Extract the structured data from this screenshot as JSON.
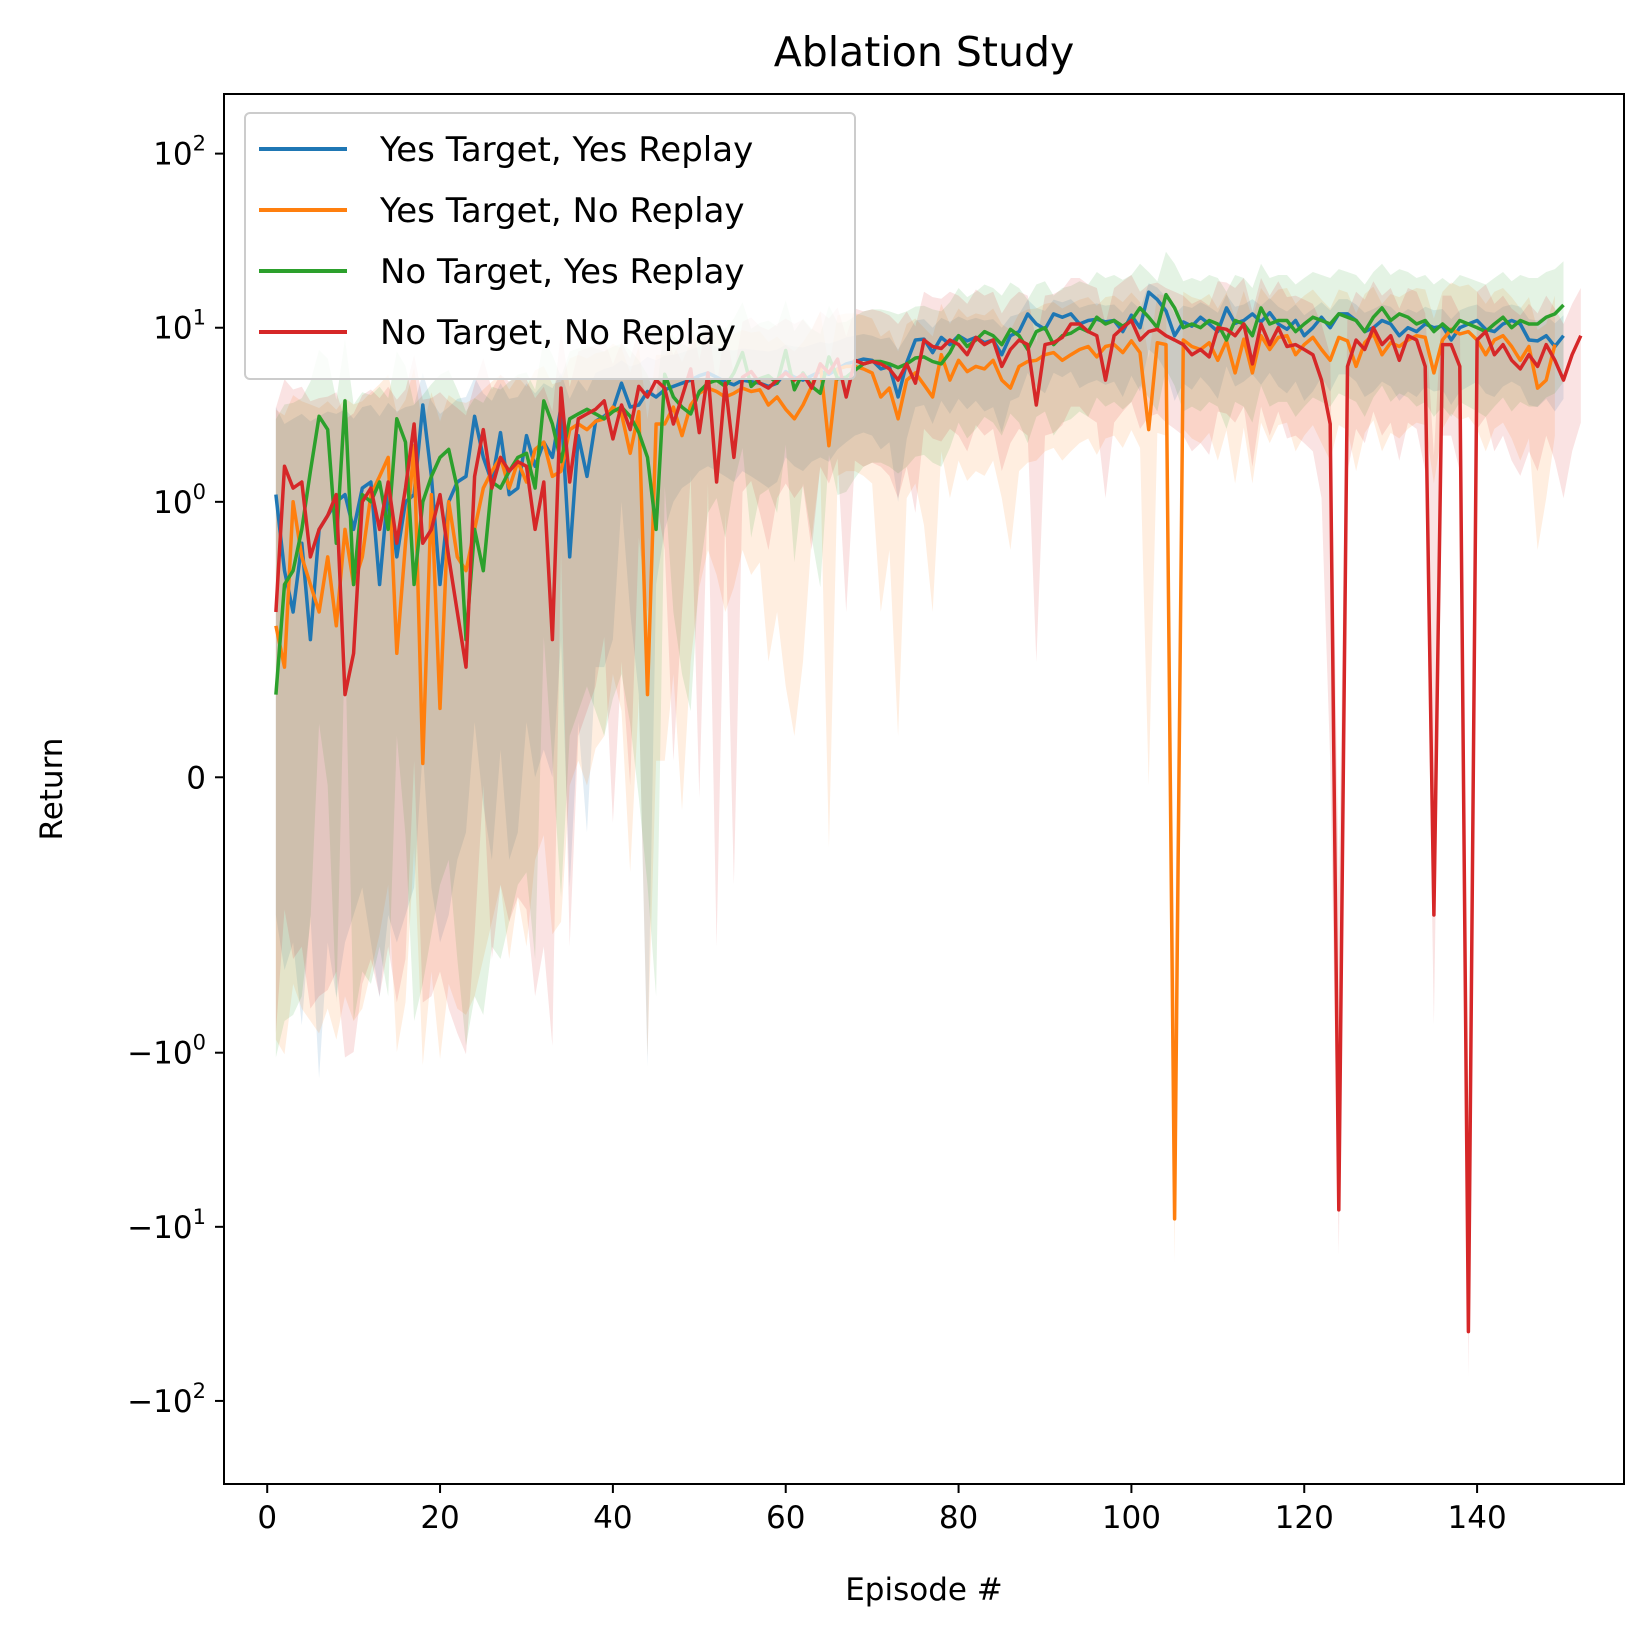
{
  "chart_data": {
    "type": "line",
    "title": "Ablation Study",
    "xlabel": "Episode #",
    "ylabel": "Return",
    "y_scale": "symlog",
    "xlim": [
      -5,
      157
    ],
    "ylim": [
      -300,
      220
    ],
    "x_ticks": [
      0,
      20,
      40,
      60,
      80,
      100,
      120,
      140
    ],
    "y_ticks": [
      {
        "value": 100,
        "base": "10",
        "exp": "2"
      },
      {
        "value": 10,
        "base": "10",
        "exp": "1"
      },
      {
        "value": 1,
        "base": "10",
        "exp": "0"
      },
      {
        "value": 0,
        "plain": "0"
      },
      {
        "value": -1,
        "base": "−10",
        "exp": "0"
      },
      {
        "value": -10,
        "base": "−10",
        "exp": "1"
      },
      {
        "value": -100,
        "base": "−10",
        "exp": "2"
      }
    ],
    "legend_position": "top-left",
    "grid": false,
    "episodes_first": 1,
    "series": [
      {
        "name": "Yes Target, Yes Replay",
        "color": "#1f77b4",
        "values": [
          1.1,
          0.75,
          0.6,
          0.85,
          0.5,
          0.9,
          0.95,
          1.0,
          1.1,
          0.9,
          1.2,
          1.3,
          0.7,
          1.2,
          0.8,
          1.0,
          1.1,
          3.6,
          1.4,
          0.7,
          1.0,
          1.3,
          1.4,
          3.1,
          1.8,
          1.3,
          2.5,
          1.1,
          1.2,
          2.4,
          1.6,
          2.2,
          1.8,
          3.5,
          0.8,
          2.4,
          1.4,
          2.9,
          3.1,
          3.4,
          4.8,
          3.5,
          3.6,
          4.3,
          4.0,
          4.4,
          4.6,
          4.8,
          5.0,
          5.3,
          5.5,
          5.2,
          4.9,
          4.7,
          5.0,
          4.9,
          4.8,
          4.6,
          4.8,
          5.6,
          5.2,
          5.0,
          5.3,
          5.6,
          5.4,
          5.8,
          6.2,
          6.4,
          6.6,
          6.5,
          5.8,
          6.0,
          4.0,
          6.3,
          8.5,
          8.6,
          7.2,
          8.8,
          8.0,
          9.0,
          8.4,
          8.8,
          8.2,
          8.5,
          7.0,
          9.0,
          9.5,
          12.0,
          10.5,
          9.8,
          12.0,
          11.5,
          12.0,
          10.5,
          11.0,
          11.2,
          10.8,
          11.0,
          9.5,
          11.8,
          10.0,
          16.0,
          14.5,
          12.5,
          9.0,
          10.8,
          10.2,
          11.5,
          10.5,
          9.5,
          13.0,
          10.6,
          11.0,
          12.0,
          10.8,
          12.2,
          10.5,
          9.8,
          11.0,
          9.0,
          10.0,
          11.5,
          10.0,
          12.0,
          12.0,
          11.0,
          9.5,
          10.0,
          11.0,
          10.5,
          9.0,
          10.0,
          9.5,
          10.5,
          10.0,
          10.2,
          8.5,
          10.0,
          10.5,
          11.0,
          9.8,
          9.5,
          10.5,
          11.0,
          10.5,
          8.5,
          8.4,
          9.0,
          7.8,
          9.0
        ],
        "upper": [
          3.5,
          2.8,
          3.0,
          3.2,
          2.9,
          3.1,
          3.3,
          3.2,
          3.4,
          3.0,
          3.5,
          3.6,
          3.1,
          3.7,
          3.3,
          3.5,
          3.6,
          5.5,
          3.8,
          3.2,
          3.5,
          3.9,
          4.0,
          5.2,
          4.2,
          3.8,
          4.8,
          3.9,
          4.0,
          4.8,
          4.2,
          4.8,
          4.5,
          5.5,
          3.9,
          5.0,
          4.3,
          5.5,
          5.8,
          6.0,
          6.5,
          6.0,
          6.2,
          6.8,
          6.5,
          6.9,
          7.0,
          7.2,
          7.5,
          7.8,
          8.0,
          7.8,
          7.5,
          7.4,
          7.6,
          7.5,
          7.4,
          7.3,
          7.5,
          8.0,
          7.8,
          7.7,
          8.0,
          8.3,
          8.1,
          8.4,
          8.8,
          9.0,
          9.2,
          9.0,
          8.6,
          8.8,
          7.5,
          9.0,
          11.0,
          11.2,
          10.0,
          11.4,
          10.8,
          11.6,
          11.0,
          11.4,
          11.0,
          11.2,
          10.0,
          11.6,
          12.0,
          14.5,
          13.0,
          12.5,
          14.5,
          14.0,
          14.6,
          13.0,
          13.5,
          13.8,
          13.4,
          13.6,
          12.2,
          14.2,
          12.8,
          18.0,
          17.0,
          15.0,
          12.0,
          13.4,
          13.0,
          14.0,
          13.2,
          12.2,
          15.5,
          13.2,
          13.6,
          14.6,
          13.4,
          14.8,
          13.2,
          12.4,
          13.6,
          11.8,
          12.8,
          14.0,
          12.6,
          14.6,
          14.6,
          13.6,
          12.2,
          12.8,
          13.6,
          13.2,
          11.8,
          12.8,
          12.2,
          13.2,
          12.6,
          12.8,
          11.2,
          12.6,
          13.2,
          13.6,
          12.4,
          12.2,
          13.2,
          13.6,
          13.2,
          11.2,
          11.0,
          11.8,
          10.6,
          11.8
        ],
        "lower": [
          -0.5,
          -0.7,
          -0.6,
          -0.9,
          -0.5,
          -1.4,
          -0.6,
          -0.8,
          -0.6,
          -0.5,
          -0.4,
          -0.6,
          -0.8,
          -0.5,
          -0.6,
          -0.5,
          -0.4,
          0.1,
          -0.4,
          -0.6,
          -0.5,
          -0.3,
          -0.2,
          0.2,
          -0.1,
          -0.3,
          0.1,
          -0.3,
          -0.2,
          0.2,
          0.0,
          0.1,
          0.0,
          0.5,
          -0.4,
          0.2,
          -0.2,
          0.4,
          0.4,
          0.5,
          1.0,
          0.6,
          0.3,
          -1.2,
          0.7,
          0.9,
          1.0,
          1.2,
          1.3,
          1.5,
          1.6,
          1.5,
          1.4,
          1.3,
          1.5,
          1.4,
          1.3,
          1.2,
          1.3,
          1.8,
          1.6,
          1.5,
          1.7,
          1.8,
          1.7,
          2.0,
          2.2,
          2.4,
          2.5,
          2.4,
          2.0,
          2.2,
          1.0,
          2.3,
          3.5,
          3.6,
          2.8,
          3.8,
          3.2,
          3.9,
          3.4,
          3.8,
          3.3,
          3.5,
          2.5,
          3.8,
          4.0,
          5.5,
          4.6,
          4.2,
          5.5,
          5.2,
          5.6,
          4.5,
          4.8,
          5.0,
          4.7,
          4.9,
          4.0,
          5.3,
          4.3,
          7.5,
          6.8,
          5.6,
          3.8,
          4.8,
          4.4,
          5.2,
          4.6,
          3.9,
          6.0,
          4.6,
          4.9,
          5.4,
          4.7,
          5.5,
          4.6,
          4.2,
          4.9,
          3.8,
          4.3,
          5.2,
          4.3,
          5.4,
          5.4,
          4.9,
          4.0,
          4.3,
          4.9,
          4.6,
          3.8,
          4.3,
          4.0,
          4.6,
          4.3,
          4.4,
          3.6,
          4.3,
          4.6,
          4.9,
          4.2,
          4.0,
          4.6,
          4.9,
          4.6,
          3.6,
          3.5,
          3.9,
          3.3,
          3.9
        ]
      },
      {
        "name": "Yes Target, No Replay",
        "color": "#ff7f0e",
        "values": [
          0.55,
          0.4,
          1.0,
          0.8,
          0.7,
          0.6,
          0.8,
          0.55,
          0.9,
          0.7,
          0.8,
          1.1,
          1.4,
          1.8,
          0.45,
          0.85,
          2.1,
          0.05,
          1.1,
          0.25,
          1.0,
          0.8,
          0.75,
          0.9,
          1.2,
          1.5,
          1.8,
          1.2,
          1.7,
          1.3,
          2.0,
          2.2,
          1.4,
          1.5,
          2.6,
          2.8,
          2.6,
          2.9,
          3.0,
          3.5,
          3.2,
          1.9,
          3.3,
          0.3,
          2.8,
          2.8,
          3.5,
          2.4,
          3.6,
          4.2,
          4.5,
          4.3,
          4.0,
          4.2,
          4.5,
          4.3,
          4.4,
          3.6,
          4.0,
          3.4,
          3.0,
          3.6,
          4.6,
          6.2,
          2.1,
          5.8,
          6.0,
          6.0,
          5.8,
          5.5,
          4.0,
          4.5,
          3.0,
          5.0,
          5.5,
          4.7,
          4.0,
          7.0,
          5.0,
          6.5,
          5.6,
          6.0,
          5.8,
          6.5,
          5.0,
          4.5,
          6.0,
          6.4,
          6.5,
          7.0,
          7.2,
          6.5,
          7.0,
          7.5,
          7.8,
          6.8,
          7.8,
          8.0,
          7.2,
          8.4,
          7.2,
          2.6,
          8.2,
          8.0,
          -9.0,
          8.5,
          7.8,
          7.5,
          8.2,
          6.5,
          8.4,
          5.5,
          8.6,
          5.5,
          9.0,
          7.5,
          8.8,
          9.0,
          7.0,
          8.0,
          8.8,
          7.5,
          6.5,
          8.8,
          8.4,
          6.0,
          8.2,
          9.2,
          7.0,
          8.2,
          7.8,
          8.5,
          9.0,
          8.8,
          5.5,
          8.5,
          9.8,
          9.2,
          9.5,
          8.5,
          7.0,
          8.5,
          9.0,
          7.8,
          6.5,
          7.8,
          4.5,
          5.0,
          8.0
        ]
      },
      {
        "name": "No Target, Yes Replay",
        "color": "#2ca02c",
        "values": [
          0.3,
          0.7,
          0.75,
          0.9,
          1.5,
          3.1,
          2.6,
          0.85,
          3.8,
          0.7,
          1.1,
          1.0,
          1.3,
          0.9,
          3.0,
          2.2,
          0.7,
          1.0,
          1.4,
          1.8,
          2.0,
          1.2,
          0.5,
          0.9,
          0.75,
          1.3,
          1.2,
          1.5,
          1.8,
          1.9,
          1.2,
          3.8,
          2.8,
          1.7,
          3.0,
          3.2,
          3.4,
          3.2,
          3.0,
          3.3,
          3.5,
          3.1,
          2.5,
          1.8,
          0.9,
          5.4,
          4.0,
          3.5,
          3.2,
          4.3,
          4.8,
          5.0,
          4.6,
          5.5,
          7.2,
          4.6,
          5.1,
          5.3,
          4.8,
          7.4,
          4.4,
          5.5,
          4.6,
          4.2,
          6.8,
          5.1,
          5.2,
          5.7,
          6.2,
          6.4,
          6.4,
          6.2,
          5.9,
          6.2,
          6.7,
          6.8,
          6.4,
          6.2,
          7.2,
          9.0,
          7.8,
          8.5,
          9.5,
          9.0,
          8.0,
          9.8,
          9.0,
          7.5,
          9.5,
          10.0,
          8.0,
          9.0,
          9.3,
          10.0,
          9.5,
          11.5,
          10.5,
          11.0,
          10.2,
          11.0,
          13.0,
          11.5,
          10.0,
          15.5,
          13.0,
          10.0,
          10.5,
          10.0,
          11.0,
          10.5,
          8.5,
          11.0,
          10.5,
          9.0,
          13.0,
          10.5,
          11.0,
          11.0,
          9.5,
          10.5,
          11.5,
          11.0,
          10.5,
          12.0,
          11.5,
          11.0,
          9.5,
          11.5,
          13.0,
          11.0,
          12.0,
          11.5,
          10.5,
          11.0,
          9.5,
          10.5,
          9.5,
          11.0,
          10.5,
          10.0,
          9.5,
          10.5,
          11.5,
          10.0,
          11.0,
          10.5,
          10.5,
          11.5,
          12.0,
          13.5
        ]
      },
      {
        "name": "No Target, No Replay",
        "color": "#d62728",
        "values": [
          0.6,
          1.6,
          1.2,
          1.3,
          0.8,
          0.9,
          0.95,
          1.1,
          0.3,
          0.45,
          1.0,
          1.2,
          0.9,
          1.3,
          0.85,
          1.2,
          2.8,
          0.85,
          0.9,
          1.1,
          0.8,
          0.6,
          0.4,
          1.4,
          2.6,
          1.2,
          1.8,
          1.5,
          1.7,
          1.6,
          0.9,
          1.3,
          0.5,
          4.5,
          1.3,
          3.0,
          3.2,
          3.4,
          3.8,
          2.3,
          3.6,
          2.6,
          4.6,
          4.0,
          5.0,
          4.5,
          2.8,
          4.0,
          5.8,
          2.5,
          5.5,
          1.3,
          4.8,
          1.8,
          5.2,
          5.6,
          4.8,
          4.5,
          5.0,
          5.5,
          5.0,
          5.4,
          4.5,
          6.2,
          5.5,
          6.6,
          4.0,
          6.5,
          6.2,
          6.4,
          6.2,
          5.8,
          5.0,
          6.2,
          4.8,
          8.5,
          7.8,
          7.6,
          8.5,
          8.0,
          7.0,
          8.8,
          8.0,
          8.5,
          6.0,
          7.5,
          8.5,
          8.0,
          3.6,
          8.0,
          8.2,
          8.8,
          10.5,
          10.5,
          9.5,
          9.0,
          5.0,
          9.0,
          10.0,
          11.0,
          8.5,
          9.5,
          9.8,
          9.0,
          8.5,
          8.0,
          7.0,
          7.5,
          6.8,
          10.0,
          9.8,
          9.0,
          10.5,
          6.2,
          10.5,
          8.0,
          10.0,
          7.8,
          8.0,
          7.5,
          7.0,
          5.0,
          2.8,
          -8.0,
          6.0,
          8.5,
          7.5,
          10.0,
          8.0,
          9.0,
          6.5,
          9.0,
          8.5,
          6.0,
          -0.5,
          8.0,
          8.0,
          6.0,
          -40.0,
          8.5,
          9.5,
          7.0,
          8.0,
          6.5,
          5.8,
          7.0,
          6.0,
          8.0,
          6.5,
          5.0,
          7.0,
          9.0
        ]
      }
    ]
  }
}
